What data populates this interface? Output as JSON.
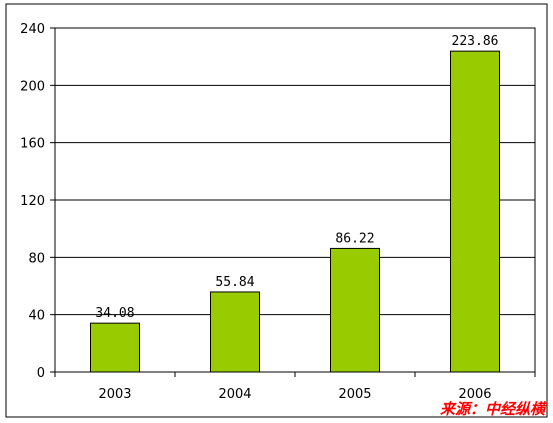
{
  "chart_data": {
    "type": "bar",
    "categories": [
      "2003",
      "2004",
      "2005",
      "2006"
    ],
    "values": [
      34.08,
      55.84,
      86.22,
      223.86
    ],
    "value_labels": [
      "34.08",
      "55.84",
      "86.22",
      "223.86"
    ],
    "title": "",
    "xlabel": "",
    "ylabel": "",
    "ylim": [
      0,
      240
    ],
    "yticks": [
      0,
      40,
      80,
      120,
      160,
      200,
      240
    ],
    "grid": true,
    "bar_color": "#99cc00",
    "legend": "none"
  },
  "source_note": "来源：中经纵横",
  "colors": {
    "frame": "#000000",
    "source": "#ff0000"
  }
}
